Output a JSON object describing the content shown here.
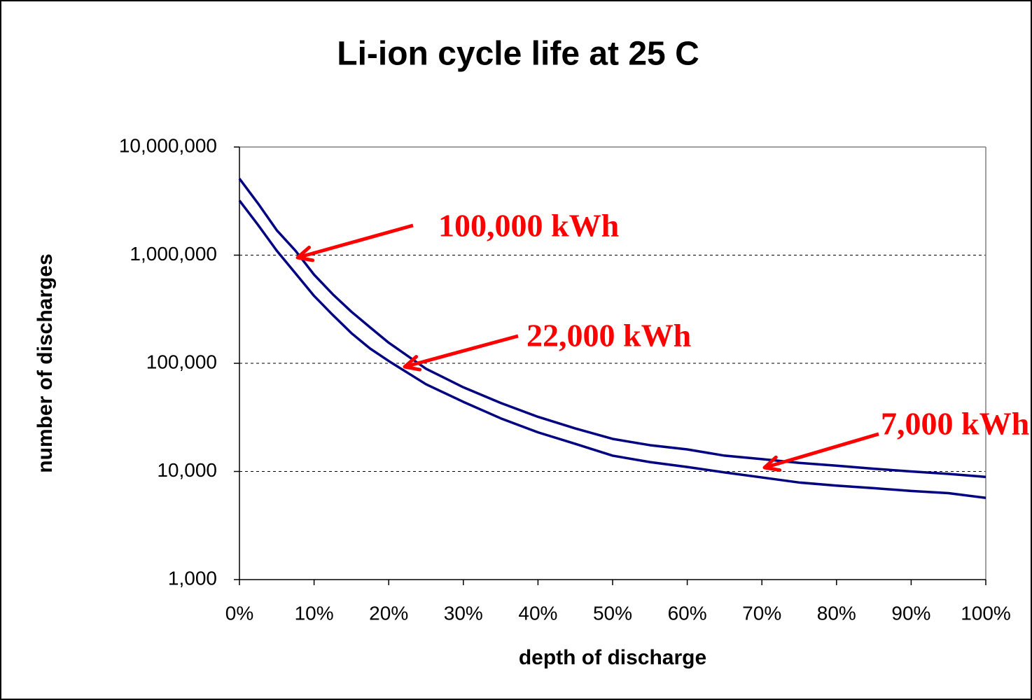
{
  "chart_data": {
    "type": "line",
    "title": "Li-ion cycle life at 25 C",
    "x_label": "depth of discharge",
    "y_label": "number of discharges",
    "x": [
      0,
      2.5,
      5,
      7.5,
      10,
      12.5,
      15,
      17.5,
      20,
      25,
      30,
      35,
      40,
      45,
      50,
      55,
      60,
      65,
      70,
      75,
      80,
      85,
      90,
      95,
      100
    ],
    "series": [
      {
        "color": "#000080",
        "values": [
          5100000,
          3000000,
          1700000,
          1100000,
          660000,
          435000,
          300000,
          215000,
          155000,
          89000,
          60000,
          43000,
          32000,
          25000,
          20000,
          17500,
          16000,
          14000,
          13000,
          12000,
          11300,
          10600,
          10000,
          9500,
          8900
        ]
      },
      {
        "color": "#000080",
        "values": [
          3200000,
          1900000,
          1100000,
          680000,
          420000,
          280000,
          190000,
          137000,
          105000,
          64000,
          44000,
          31000,
          23000,
          18000,
          14000,
          12200,
          11000,
          9800,
          8800,
          7900,
          7400,
          7000,
          6600,
          6300,
          5700
        ]
      }
    ],
    "xlim": [
      0,
      100
    ],
    "xticks": [
      {
        "value": 0,
        "label": "0%"
      },
      {
        "value": 10,
        "label": "10%"
      },
      {
        "value": 20,
        "label": "20%"
      },
      {
        "value": 30,
        "label": "30%"
      },
      {
        "value": 40,
        "label": "40%"
      },
      {
        "value": 50,
        "label": "50%"
      },
      {
        "value": 60,
        "label": "60%"
      },
      {
        "value": 70,
        "label": "70%"
      },
      {
        "value": 80,
        "label": "80%"
      },
      {
        "value": 90,
        "label": "90%"
      },
      {
        "value": 100,
        "label": "100%"
      }
    ],
    "ylim": [
      1000,
      10000000
    ],
    "yticks": [
      {
        "value": 1000,
        "label": "1,000"
      },
      {
        "value": 10000,
        "label": "10,000"
      },
      {
        "value": 100000,
        "label": "100,000"
      },
      {
        "value": 1000000,
        "label": "1,000,000"
      },
      {
        "value": 10000000,
        "label": "10,000,000"
      }
    ],
    "log_y": true,
    "grid": true,
    "annotations": [
      "100,000 kWh",
      "22,000 kWh",
      "7,000 kWh"
    ],
    "annotation_color": "#ff0000"
  }
}
